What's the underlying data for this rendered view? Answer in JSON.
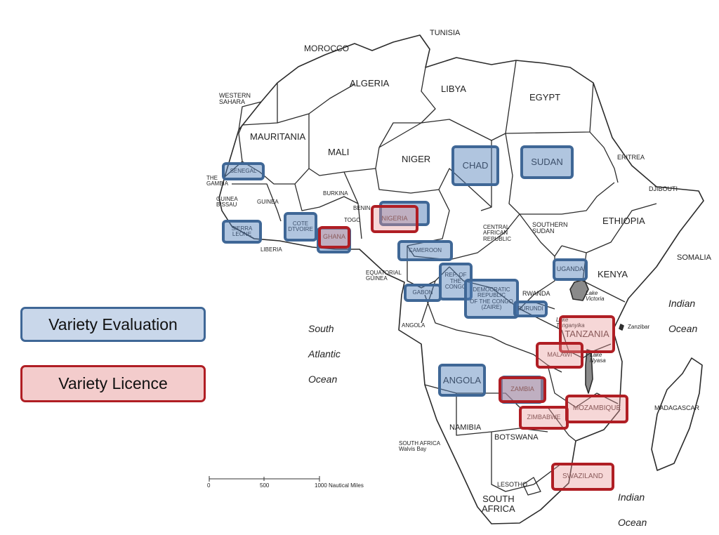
{
  "legend": {
    "evaluation": "Variety Evaluation",
    "licence": "Variety Licence",
    "colors": {
      "evaluation_fill": "#c9d7ea",
      "evaluation_border": "#3f6796",
      "licence_fill": "#f3cccc",
      "licence_border": "#b01e24"
    }
  },
  "countries": {
    "tunisia": "TUNISIA",
    "morocco": "MOROCCO",
    "algeria": "ALGERIA",
    "libya": "LIBYA",
    "egypt": "EGYPT",
    "western_sahara": "WESTERN\nSAHARA",
    "mauritania": "MAURITANIA",
    "mali": "MALI",
    "niger": "NIGER",
    "eritrea": "ERITREA",
    "djibouti": "DJIBOUTI",
    "the_gambia": "THE\nGAMBIA",
    "guinea_bissau": "GUINEA\nBISSAU",
    "guinea": "GUINEA",
    "burkina": "BURKINA",
    "benin": "BENIN",
    "togo": "TOGO",
    "liberia": "LIBERIA",
    "car": "CENTRAL\nAFRICAN\nREPUBLIC",
    "south_sudan": "SOUTHERN\nSUDAN",
    "ethiopia": "ETHIOPIA",
    "somalia": "SOMALIA",
    "kenya": "KENYA",
    "equatorial_guinea": "EQUATORIAL\nGUINEA",
    "rwanda": "RWANDA",
    "angola_small": "ANGOLA",
    "zanzibar": "Zanzibar",
    "namibia": "NAMIBIA",
    "botswana": "BOTSWANA",
    "south_africa_walvis": "SOUTH AFRICA\nWalvis Bay",
    "lesotho": "LESOTHO",
    "south_africa": "SOUTH\nAFRICA",
    "madagascar": "MADAGASCAR"
  },
  "lakes": {
    "victoria": "Lake\nVictoria",
    "tanganyika": "Lake\nTanganyika",
    "nyasa": "Lake\nNyasa"
  },
  "oceans": {
    "south_atlantic": "South\nAtlantic\nOcean",
    "indian_1": "Indian\nOcean",
    "indian_2": "Indian\nOcean"
  },
  "evaluation_countries": {
    "senegal": "SENEGAL",
    "sierra_leone": "SIERRA\nLEONE",
    "cote_divoire": "COTE\nDTVOIRE",
    "chad": "CHAD",
    "sudan": "SUDAN",
    "cameroon": "CAMEROON",
    "rep_congo": "REP. OF\nTHE\nCONGO",
    "gabon": "GABON",
    "drc": "DEMOCRATIC\nREPUBLIC\nOF THE CONGO\n(ZAIRE)",
    "burundi": "BURUNDI",
    "uganda": "UGANDA",
    "angola": "ANGOLA"
  },
  "licence_countries": {
    "ghana": "GHANA",
    "nigeria": "NIGERIA",
    "tanzania": "TANZANIA",
    "malawi": "MALAWI",
    "zambia": "ZAMBIA",
    "zimbabwe": "ZIMBABWE",
    "mozambique": "MOZAMBIQUE",
    "swaziland": "SWAZILAND"
  },
  "scale_bar": {
    "tick_0": "0",
    "tick_500": "500",
    "tick_1000": "1000 Nautical Miles"
  }
}
